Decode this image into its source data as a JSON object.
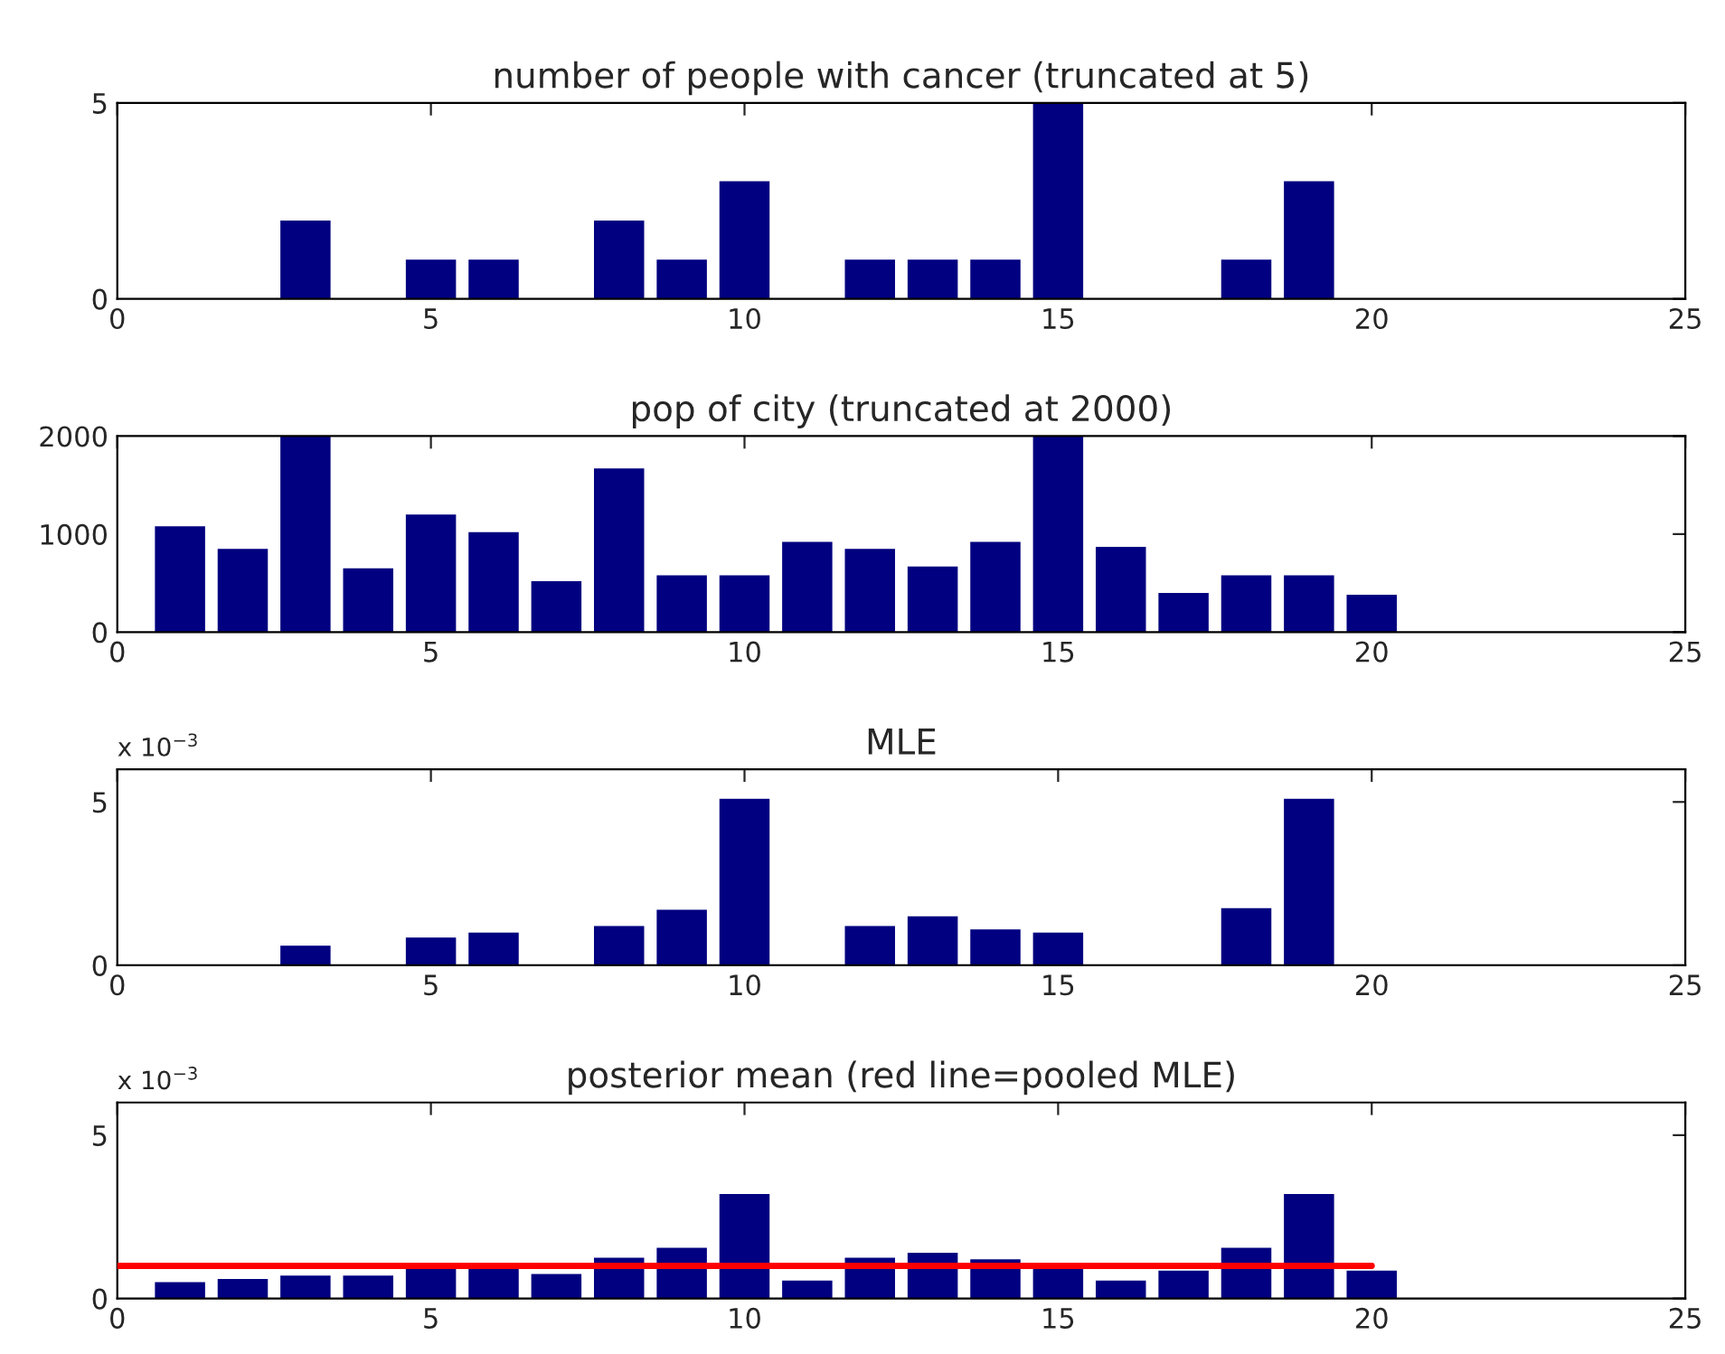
{
  "chart_data": [
    {
      "type": "bar",
      "title": "number of people with cancer (truncated at 5)",
      "x": [
        1,
        2,
        3,
        4,
        5,
        6,
        7,
        8,
        9,
        10,
        11,
        12,
        13,
        14,
        15,
        16,
        17,
        18,
        19,
        20
      ],
      "series": [
        {
          "color": "#000080",
          "values": [
            0,
            0,
            2,
            0,
            1,
            1,
            0,
            2,
            1,
            3,
            0,
            1,
            1,
            1,
            5,
            0,
            0,
            1,
            3,
            0
          ]
        }
      ],
      "xlim": [
        0,
        25
      ],
      "xticks": [
        0,
        5,
        10,
        15,
        20,
        25
      ],
      "ylim": [
        0,
        5
      ],
      "yticks": [
        0,
        5
      ],
      "grid": false,
      "legend": false
    },
    {
      "type": "bar",
      "title": "pop of city (truncated at 2000)",
      "x": [
        1,
        2,
        3,
        4,
        5,
        6,
        7,
        8,
        9,
        10,
        11,
        12,
        13,
        14,
        15,
        16,
        17,
        18,
        19,
        20
      ],
      "series": [
        {
          "color": "#000080",
          "values": [
            1080,
            850,
            2000,
            650,
            1200,
            1020,
            520,
            1670,
            580,
            580,
            920,
            850,
            670,
            920,
            2000,
            870,
            400,
            580,
            580,
            380
          ]
        }
      ],
      "xlim": [
        0,
        25
      ],
      "xticks": [
        0,
        5,
        10,
        15,
        20,
        25
      ],
      "ylim": [
        0,
        2000
      ],
      "yticks": [
        0,
        1000,
        2000
      ],
      "grid": false,
      "legend": false
    },
    {
      "type": "bar",
      "title": "MLE",
      "annotations": [
        "x 10$^{−3}$"
      ],
      "x": [
        1,
        2,
        3,
        4,
        5,
        6,
        7,
        8,
        9,
        10,
        11,
        12,
        13,
        14,
        15,
        16,
        17,
        18,
        19,
        20
      ],
      "series": [
        {
          "color": "#000080",
          "values": [
            0,
            0,
            0.6,
            0,
            0.85,
            1.0,
            0,
            1.2,
            1.7,
            5.1,
            0,
            1.2,
            1.5,
            1.1,
            1.0,
            0,
            0,
            1.75,
            5.1,
            0
          ]
        }
      ],
      "xlim": [
        0,
        25
      ],
      "xticks": [
        0,
        5,
        10,
        15,
        20,
        25
      ],
      "ylim": [
        0,
        6
      ],
      "yticks": [
        0,
        5
      ],
      "grid": false,
      "legend": false
    },
    {
      "type": "bar",
      "title": "posterior mean (red line=pooled MLE)",
      "annotations": [
        "x 10$^{−3}$"
      ],
      "x": [
        1,
        2,
        3,
        4,
        5,
        6,
        7,
        8,
        9,
        10,
        11,
        12,
        13,
        14,
        15,
        16,
        17,
        18,
        19,
        20
      ],
      "series": [
        {
          "color": "#000080",
          "values": [
            0.5,
            0.6,
            0.7,
            0.7,
            0.9,
            1.05,
            0.75,
            1.25,
            1.55,
            3.2,
            0.55,
            1.25,
            1.4,
            1.2,
            1.0,
            0.55,
            0.85,
            1.55,
            3.2,
            0.85
          ]
        },
        {
          "type": "line",
          "color": "#ff0000",
          "x": [
            0,
            20
          ],
          "values": [
            1.0,
            1.0
          ]
        }
      ],
      "xlim": [
        0,
        25
      ],
      "xticks": [
        0,
        5,
        10,
        15,
        20,
        25
      ],
      "ylim": [
        0,
        6
      ],
      "yticks": [
        0,
        5
      ],
      "grid": false,
      "legend": false
    }
  ]
}
